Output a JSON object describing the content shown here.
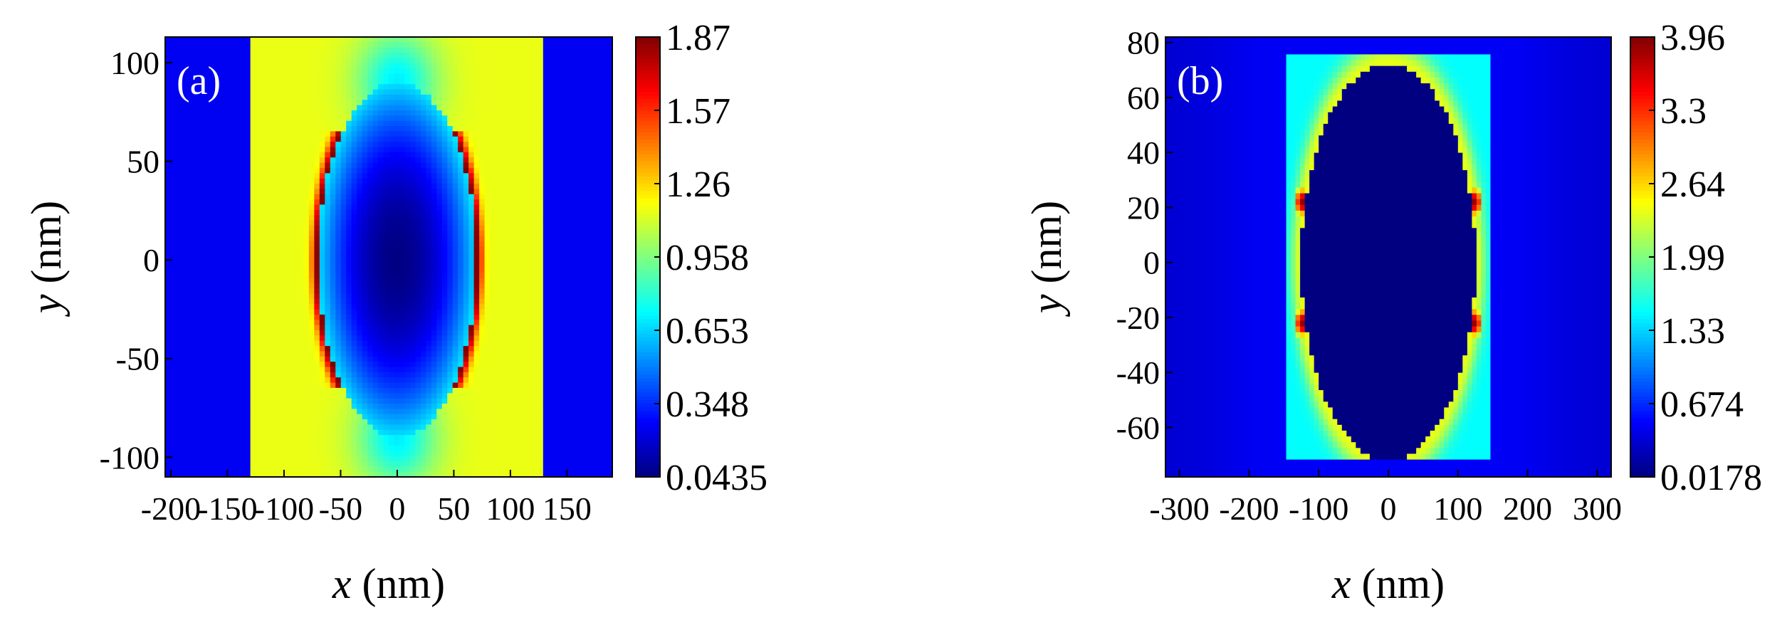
{
  "chart_data": [
    {
      "type": "heatmap",
      "panel_label": "(a)",
      "xlabel_var": "x",
      "xlabel_unit": " (nm)",
      "ylabel_var": "y",
      "ylabel_unit": " (nm)",
      "xlim": [
        -205,
        190
      ],
      "ylim": [
        -110,
        113
      ],
      "xticks": [
        -200,
        -150,
        -100,
        -50,
        0,
        50,
        100,
        150
      ],
      "xtick_labels": [
        "-200",
        "-150",
        "-100",
        "-50",
        "0",
        "50",
        "100",
        "150"
      ],
      "yticks": [
        100,
        50,
        0,
        -50,
        -100
      ],
      "ytick_labels": [
        "100",
        "50",
        "0",
        "-50",
        "-100"
      ],
      "colorbar": {
        "min": 0.0435,
        "max": 1.87,
        "tick_labels": [
          "1.87",
          "1.57",
          "1.26",
          "0.958",
          "0.653",
          "0.348",
          "0.0435"
        ]
      },
      "field_model": {
        "background": 0.25,
        "slab_x": [
          -130,
          130
        ],
        "slab_value": 1.15,
        "hole_center": [
          0,
          0
        ],
        "hole_semi_axes": [
          70,
          90
        ],
        "hole_value": 0.05,
        "hot_spot_value": 1.87,
        "hot_edge_x": 60,
        "hot_edge_y": 60
      }
    },
    {
      "type": "heatmap",
      "panel_label": "(b)",
      "xlabel_var": "x",
      "xlabel_unit": " (nm)",
      "ylabel_var": "y",
      "ylabel_unit": " (nm)",
      "xlim": [
        -320,
        320
      ],
      "ylim": [
        -78,
        82
      ],
      "xticks": [
        -300,
        -200,
        -100,
        0,
        100,
        200,
        300
      ],
      "xtick_labels": [
        "-300",
        "-200",
        "-100",
        "0",
        "100",
        "200",
        "300"
      ],
      "yticks": [
        80,
        60,
        40,
        20,
        0,
        -20,
        -40,
        -60
      ],
      "ytick_labels": [
        "80",
        "60",
        "40",
        "20",
        "0",
        "-20",
        "-40",
        "-60"
      ],
      "colorbar": {
        "min": 0.0178,
        "max": 3.96,
        "tick_labels": [
          "3.96",
          "3.3",
          "2.64",
          "1.99",
          "1.33",
          "0.674",
          "0.0178"
        ]
      },
      "field_model": {
        "background": 0.4,
        "slab_x": [
          -145,
          145
        ],
        "slab_y": [
          -72,
          76
        ],
        "slab_value": 1.5,
        "hole_center": [
          0,
          0
        ],
        "hole_semi_axes": [
          125,
          72
        ],
        "hole_value": 0.02,
        "hot_spot_value": 3.96,
        "hot_spots": [
          [
            -125,
            22
          ],
          [
            -125,
            -22
          ],
          [
            125,
            22
          ],
          [
            125,
            -22
          ]
        ]
      }
    }
  ]
}
